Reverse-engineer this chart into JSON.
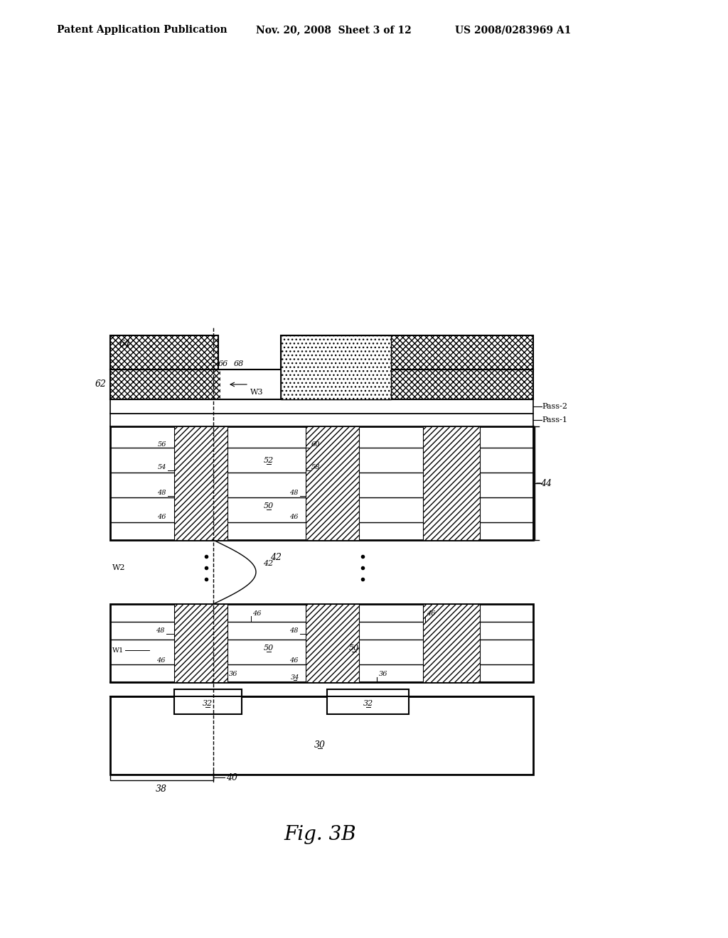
{
  "header_left": "Patent Application Publication",
  "header_mid": "Nov. 20, 2008  Sheet 3 of 12",
  "header_right": "US 2008/0283969 A1",
  "bg_color": "#ffffff",
  "fig_label": "Fig. 3B"
}
